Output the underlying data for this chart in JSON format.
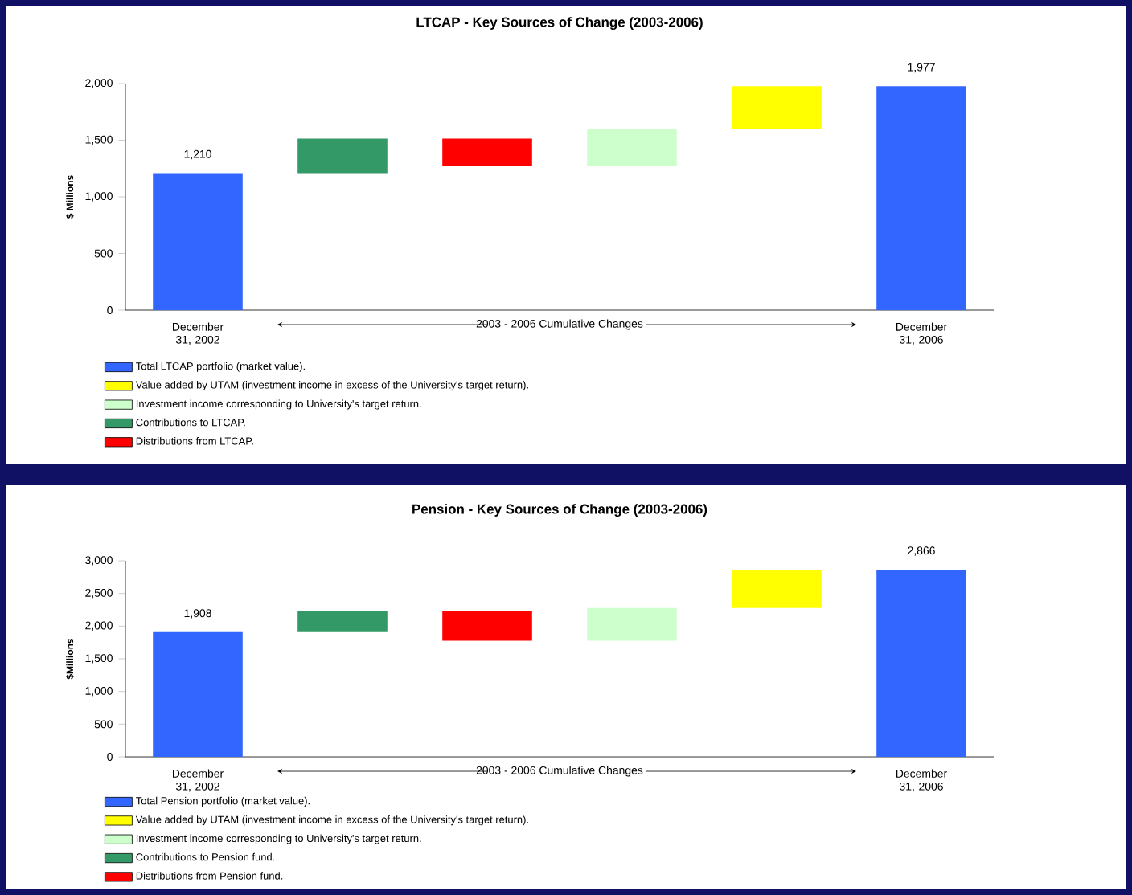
{
  "chart_data": [
    {
      "type": "bar",
      "title": "LTCAP - Key Sources of Change (2003-2006)",
      "ylabel": "$ Millions",
      "categories": [
        "December 31, 2002",
        null,
        null,
        null,
        null,
        "December 31, 2006"
      ],
      "ylim": [
        0,
        2000
      ],
      "yticks": [
        0,
        500,
        {
          "value": 1000,
          "label": "1,000"
        },
        {
          "value": 1500,
          "label": "1,500"
        },
        {
          "value": 2000,
          "label": "2,000"
        }
      ],
      "legend": "bottom",
      "annotations": [
        "2003 - 2006 Cumulative Changes"
      ],
      "series": [
        {
          "name": "Total LTCAP portfolio (market value).",
          "color": "#3366ff",
          "values": [
            1210,
            null,
            null,
            null,
            null,
            1977
          ],
          "base": [
            0,
            null,
            null,
            null,
            null,
            0
          ],
          "value_labels": [
            "1,210",
            null,
            null,
            null,
            null,
            "1,977"
          ]
        },
        {
          "name": "Value added by UTAM (investment income in excess of the University's target return).",
          "color": "#ffff00",
          "values": [
            null,
            null,
            null,
            null,
            377,
            null
          ],
          "base": [
            null,
            null,
            null,
            null,
            1600,
            null
          ]
        },
        {
          "name": "Investment income corresponding to University's target return.",
          "color": "#ccffcc",
          "values": [
            null,
            null,
            null,
            330,
            null,
            null
          ],
          "base": [
            null,
            null,
            null,
            1270,
            null,
            null
          ]
        },
        {
          "name": "Contributions to LTCAP.",
          "color": "#339966",
          "values": [
            null,
            305,
            null,
            null,
            null,
            null
          ],
          "base": [
            null,
            1210,
            null,
            null,
            null,
            null
          ]
        },
        {
          "name": "Distributions from LTCAP.",
          "color": "#ff0000",
          "values": [
            null,
            null,
            -245,
            null,
            null,
            null
          ],
          "base": [
            null,
            null,
            1515,
            null,
            null,
            null
          ]
        }
      ]
    },
    {
      "type": "bar",
      "title": "Pension - Key Sources of Change (2003-2006)",
      "ylabel": "$Millions",
      "categories": [
        "December 31, 2002",
        null,
        null,
        null,
        null,
        "December 31, 2006"
      ],
      "ylim": [
        0,
        3000
      ],
      "yticks": [
        0,
        500,
        {
          "value": 1000,
          "label": "1,000"
        },
        {
          "value": 1500,
          "label": "1,500"
        },
        {
          "value": 2000,
          "label": "2,000"
        },
        {
          "value": 2500,
          "label": "2,500"
        },
        {
          "value": 3000,
          "label": "3,000"
        }
      ],
      "legend": "bottom",
      "annotations": [
        "2003 - 2006 Cumulative Changes"
      ],
      "series": [
        {
          "name": "Total Pension portfolio (market value).",
          "color": "#3366ff",
          "values": [
            1908,
            null,
            null,
            null,
            null,
            2866
          ],
          "base": [
            0,
            null,
            null,
            null,
            null,
            0
          ],
          "value_labels": [
            "1,908",
            null,
            null,
            null,
            null,
            "2,866"
          ]
        },
        {
          "name": "Value added by UTAM (investment income in excess of the University's target return).",
          "color": "#ffff00",
          "values": [
            null,
            null,
            null,
            null,
            588,
            null
          ],
          "base": [
            null,
            null,
            null,
            null,
            2278,
            null
          ]
        },
        {
          "name": "Investment income corresponding to University's target return.",
          "color": "#ccffcc",
          "values": [
            null,
            null,
            null,
            500,
            null,
            null
          ],
          "base": [
            null,
            null,
            null,
            1778,
            null,
            null
          ]
        },
        {
          "name": "Contributions to Pension fund.",
          "color": "#339966",
          "values": [
            null,
            325,
            null,
            null,
            null,
            null
          ],
          "base": [
            null,
            1908,
            null,
            null,
            null,
            null
          ]
        },
        {
          "name": "Distributions from Pension fund.",
          "color": "#ff0000",
          "values": [
            null,
            null,
            -455,
            null,
            null,
            null
          ],
          "base": [
            null,
            null,
            2233,
            null,
            null,
            null
          ]
        }
      ]
    }
  ]
}
